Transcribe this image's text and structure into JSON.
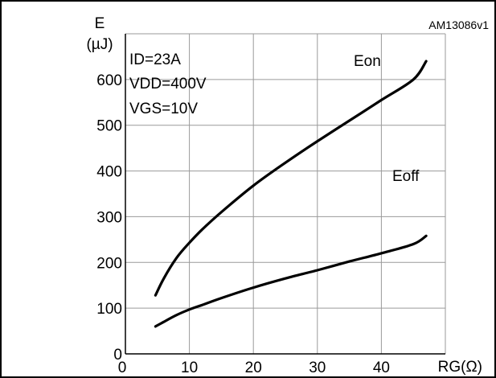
{
  "figure_code": "AM13086v1",
  "chart_data": {
    "type": "line",
    "y_axis_symbol": "E",
    "y_axis_unit": "(µJ)",
    "x_axis_label": "RG(Ω)",
    "xlim": [
      0,
      50
    ],
    "ylim": [
      0,
      700
    ],
    "x_ticks": [
      0,
      10,
      20,
      30,
      40
    ],
    "y_ticks": [
      0,
      100,
      200,
      300,
      400,
      500,
      600
    ],
    "grid": true,
    "conditions": [
      "ID=23A",
      "VDD=400V",
      "VGS=10V"
    ],
    "series": [
      {
        "name": "Eon",
        "x": [
          4.7,
          6,
          8,
          10,
          12,
          15,
          20,
          25,
          30,
          35,
          40,
          45,
          47
        ],
        "y": [
          128,
          165,
          210,
          243,
          272,
          310,
          368,
          418,
          465,
          510,
          555,
          600,
          640
        ]
      },
      {
        "name": "Eoff",
        "x": [
          4.7,
          6,
          8,
          10,
          12,
          15,
          20,
          25,
          30,
          35,
          40,
          45,
          47
        ],
        "y": [
          60,
          70,
          85,
          97,
          107,
          122,
          145,
          165,
          183,
          202,
          220,
          240,
          258
        ]
      }
    ]
  }
}
